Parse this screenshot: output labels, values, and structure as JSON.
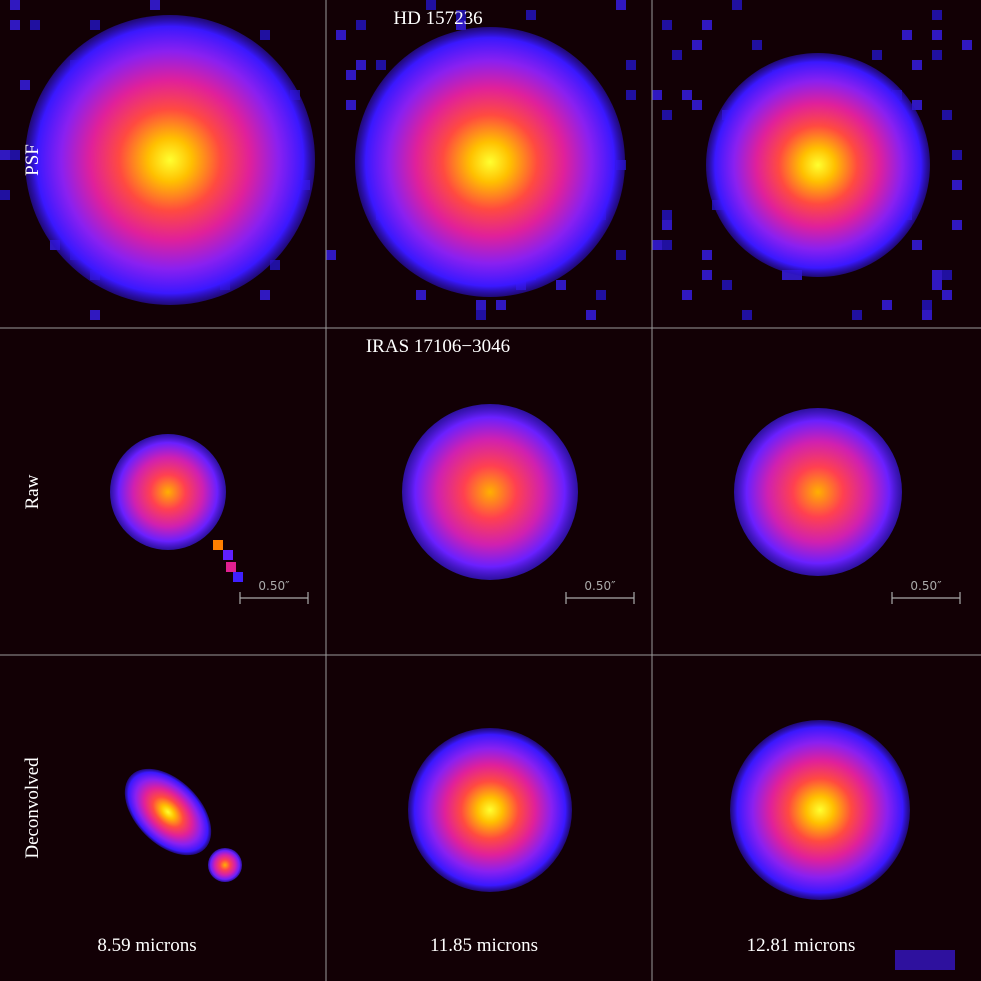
{
  "titles": [
    "HD 157236",
    "IRAS 17106−3046"
  ],
  "row_labels": [
    "PSF",
    "Raw",
    "Deconvolved"
  ],
  "scale_bar_labels": [
    "0.50″",
    "0.50″",
    "0.50″"
  ],
  "column_labels": [
    "8.59 microns",
    "11.85 microns",
    "12.81 microns"
  ]
}
